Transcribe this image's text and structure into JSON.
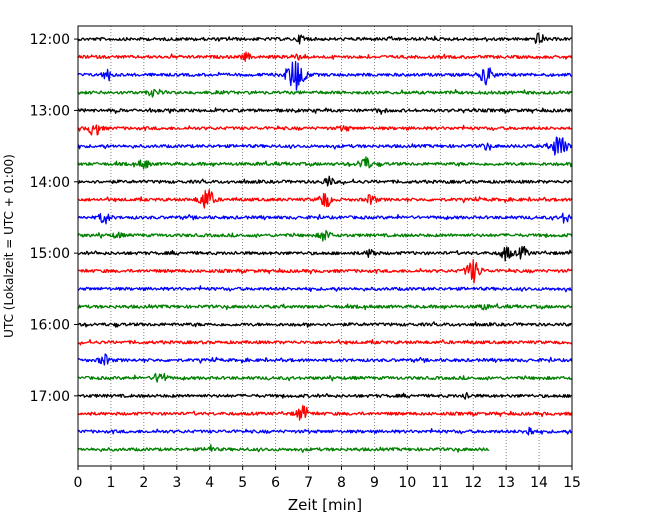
{
  "chart_data": {
    "type": "line",
    "title": "",
    "xlabel": "Zeit  [min]",
    "ylabel": "UTC (Lokalzeit = UTC + 01:00)",
    "xlim": [
      0,
      15
    ],
    "x_ticks": [
      "0",
      "1",
      "2",
      "3",
      "4",
      "5",
      "6",
      "7",
      "8",
      "9",
      "10",
      "11",
      "12",
      "13",
      "14",
      "15"
    ],
    "y_ticks": [
      "12:00",
      "13:00",
      "14:00",
      "15:00",
      "16:00",
      "17:00"
    ],
    "y_tick_minutes": [
      720,
      780,
      840,
      900,
      960,
      1020
    ],
    "ylim_minutes": [
      1079,
      709
    ],
    "grid": "vertical dotted lines at each minute",
    "trace_colors": [
      "#000000",
      "#ff0000",
      "#0000ff",
      "#008000"
    ],
    "series": [
      {
        "start": "12:00",
        "color": "#000000",
        "end_min": 15,
        "events": [
          {
            "t": 6.8,
            "a": 0.45
          },
          {
            "t": 14.0,
            "a": 0.55
          }
        ]
      },
      {
        "start": "12:15",
        "color": "#ff0000",
        "end_min": 15,
        "events": [
          {
            "t": 5.1,
            "a": 0.35
          },
          {
            "t": 6.6,
            "a": 0.4
          }
        ]
      },
      {
        "start": "12:30",
        "color": "#0000ff",
        "end_min": 15,
        "events": [
          {
            "t": 0.9,
            "a": 0.55
          },
          {
            "t": 6.6,
            "a": 1.6
          },
          {
            "t": 12.4,
            "a": 0.9
          }
        ]
      },
      {
        "start": "12:45",
        "color": "#008000",
        "end_min": 15,
        "events": [
          {
            "t": 2.3,
            "a": 0.35
          }
        ]
      },
      {
        "start": "13:00",
        "color": "#000000",
        "end_min": 15,
        "events": [
          {
            "t": 9.2,
            "a": 0.3
          }
        ]
      },
      {
        "start": "13:15",
        "color": "#ff0000",
        "end_min": 15,
        "events": [
          {
            "t": 0.5,
            "a": 0.75
          },
          {
            "t": 8.1,
            "a": 0.3
          }
        ]
      },
      {
        "start": "13:30",
        "color": "#0000ff",
        "end_min": 15,
        "events": [
          {
            "t": 12.4,
            "a": 0.3
          },
          {
            "t": 14.6,
            "a": 1.2
          }
        ]
      },
      {
        "start": "13:45",
        "color": "#008000",
        "end_min": 15,
        "events": [
          {
            "t": 2.0,
            "a": 0.5
          },
          {
            "t": 8.7,
            "a": 0.75
          }
        ]
      },
      {
        "start": "14:00",
        "color": "#000000",
        "end_min": 15,
        "events": [
          {
            "t": 7.6,
            "a": 0.5
          }
        ]
      },
      {
        "start": "14:15",
        "color": "#ff0000",
        "end_min": 15,
        "events": [
          {
            "t": 3.9,
            "a": 1.1
          },
          {
            "t": 7.5,
            "a": 0.8
          },
          {
            "t": 8.9,
            "a": 0.5
          }
        ]
      },
      {
        "start": "14:30",
        "color": "#0000ff",
        "end_min": 15,
        "events": [
          {
            "t": 0.8,
            "a": 0.6
          },
          {
            "t": 14.8,
            "a": 0.5
          }
        ]
      },
      {
        "start": "14:45",
        "color": "#008000",
        "end_min": 15,
        "events": [
          {
            "t": 1.2,
            "a": 0.3
          },
          {
            "t": 7.5,
            "a": 0.6
          }
        ]
      },
      {
        "start": "15:00",
        "color": "#000000",
        "end_min": 15,
        "events": [
          {
            "t": 8.9,
            "a": 0.45
          },
          {
            "t": 13.0,
            "a": 0.7
          },
          {
            "t": 13.5,
            "a": 0.6
          }
        ]
      },
      {
        "start": "15:15",
        "color": "#ff0000",
        "end_min": 15,
        "events": [
          {
            "t": 12.0,
            "a": 1.1
          }
        ]
      },
      {
        "start": "15:30",
        "color": "#0000ff",
        "end_min": 15,
        "events": []
      },
      {
        "start": "15:45",
        "color": "#008000",
        "end_min": 15,
        "events": [
          {
            "t": 12.3,
            "a": 0.3
          }
        ]
      },
      {
        "start": "16:00",
        "color": "#000000",
        "end_min": 15,
        "events": []
      },
      {
        "start": "16:15",
        "color": "#ff0000",
        "end_min": 15,
        "events": []
      },
      {
        "start": "16:30",
        "color": "#0000ff",
        "end_min": 15,
        "events": [
          {
            "t": 0.8,
            "a": 0.55
          }
        ]
      },
      {
        "start": "16:45",
        "color": "#008000",
        "end_min": 15,
        "events": [
          {
            "t": 2.5,
            "a": 0.7
          }
        ]
      },
      {
        "start": "17:00",
        "color": "#000000",
        "end_min": 15,
        "events": [
          {
            "t": 11.8,
            "a": 0.3
          }
        ]
      },
      {
        "start": "17:15",
        "color": "#ff0000",
        "end_min": 15,
        "events": [
          {
            "t": 6.8,
            "a": 0.75
          }
        ]
      },
      {
        "start": "17:30",
        "color": "#0000ff",
        "end_min": 15,
        "events": [
          {
            "t": 13.7,
            "a": 0.45
          }
        ]
      },
      {
        "start": "17:45",
        "color": "#008000",
        "end_min": 12.5,
        "events": [
          {
            "t": 4.0,
            "a": 0.35
          }
        ]
      }
    ]
  }
}
